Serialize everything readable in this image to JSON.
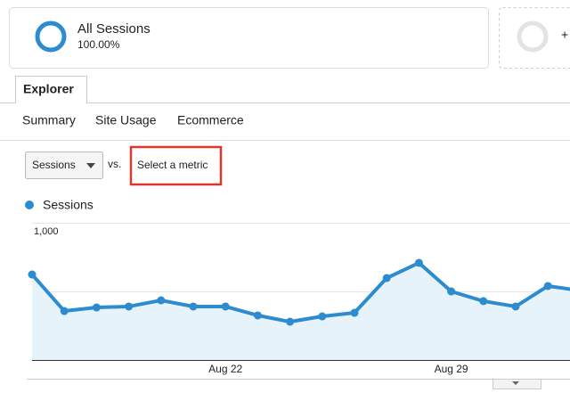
{
  "segment": {
    "name": "All Sessions",
    "percent": "100.00%"
  },
  "add_segment": "+",
  "tab": "Explorer",
  "subtabs": [
    "Summary",
    "Site Usage",
    "Ecommerce"
  ],
  "metric_select": "Sessions",
  "vs": "vs.",
  "compare_link": "Select a metric",
  "chart_data": {
    "type": "line",
    "categories": [
      null,
      null,
      null,
      null,
      null,
      null,
      "Aug 22",
      null,
      null,
      null,
      null,
      null,
      null,
      "Aug 29",
      null,
      null,
      null,
      null
    ],
    "series": [
      {
        "name": "Sessions",
        "color": "#2d8ccf",
        "values": [
          623,
          357,
          383,
          390,
          435,
          390,
          390,
          325,
          279,
          318,
          344,
          597,
          708,
          500,
          429,
          390,
          539,
          506
        ]
      }
    ],
    "ylim": [
      0,
      1000
    ],
    "yticks": [
      500,
      {
        "value": 1000,
        "label": "1,000"
      }
    ],
    "grid": true,
    "area": true
  }
}
